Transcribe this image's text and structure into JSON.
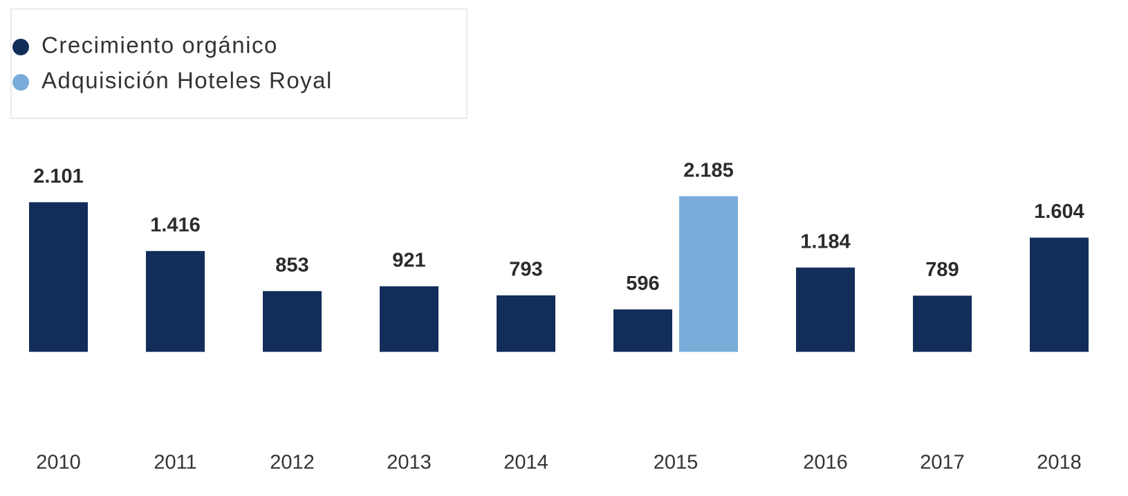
{
  "chart_data": {
    "type": "bar",
    "categories": [
      "2010",
      "2011",
      "2012",
      "2013",
      "2014",
      "2015",
      "2016",
      "2017",
      "2018"
    ],
    "series": [
      {
        "name": "Crecimiento orgánico",
        "color": "#132d5a",
        "values": [
          2101,
          1416,
          853,
          921,
          793,
          596,
          1184,
          789,
          1604
        ],
        "value_labels": [
          "2.101",
          "1.416",
          "853",
          "921",
          "793",
          "596",
          "1.184",
          "789",
          "1.604"
        ]
      },
      {
        "name": "Adquisición Hoteles Royal",
        "color": "#79acd9",
        "values": [
          null,
          null,
          null,
          null,
          null,
          2185,
          null,
          null,
          null
        ],
        "value_labels": [
          null,
          null,
          null,
          null,
          null,
          "2.185",
          null,
          null,
          null
        ]
      }
    ],
    "ylim": [
      -1150,
      2250
    ],
    "legend": "top-left"
  }
}
